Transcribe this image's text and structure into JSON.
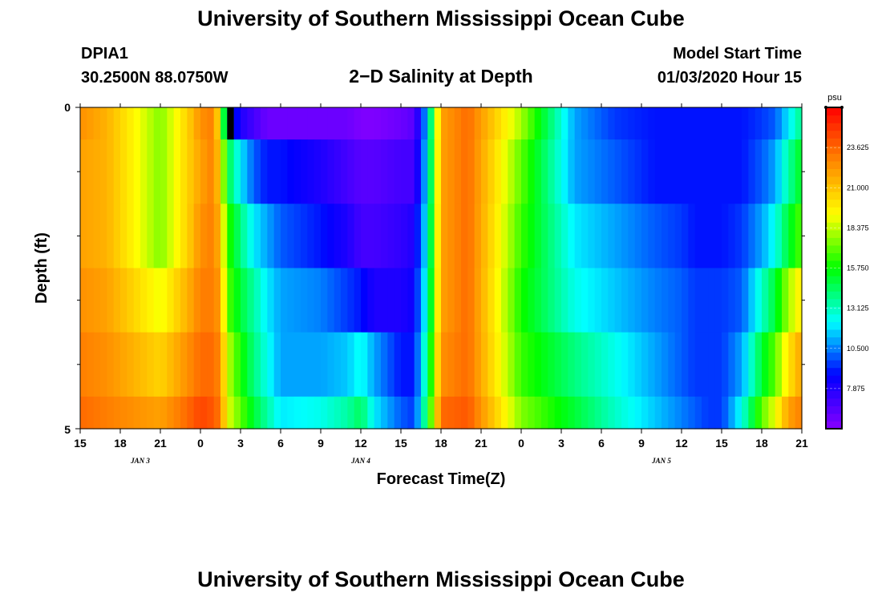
{
  "page": {
    "title": "University of Southern Mississippi Ocean Cube",
    "footer_title": "University of Southern Mississippi Ocean Cube",
    "station_id": "DPIA1",
    "station_coords": "30.2500N 88.0750W",
    "model_start_label": "Model Start Time",
    "model_start_value": "01/03/2020 Hour 15"
  },
  "chart_data": {
    "type": "heatmap",
    "title": "2−D Salinity at Depth",
    "xlabel": "Forecast Time(Z)",
    "ylabel": "Depth (ft)",
    "x_tick_labels": [
      "15",
      "18",
      "21",
      "0",
      "3",
      "6",
      "9",
      "12",
      "15",
      "18",
      "21",
      "0",
      "3",
      "6",
      "9",
      "12",
      "15",
      "18",
      "21"
    ],
    "day_labels": [
      {
        "label": "JAN 3",
        "hour_index": 4.5
      },
      {
        "label": "JAN 4",
        "hour_index": 21
      },
      {
        "label": "JAN 5",
        "hour_index": 43.5
      }
    ],
    "x_range_hours": [
      0,
      54
    ],
    "y_tick_labels": [
      "0",
      "5"
    ],
    "y_range_ft": [
      0,
      5
    ],
    "y_minor_ticks_ft": [
      1,
      2,
      3,
      4
    ],
    "depth_rows_ft": [
      0,
      0.5,
      1.5,
      2.5,
      3.5,
      4.5
    ],
    "depth_rows_span_ft": [
      [
        0,
        0.5
      ],
      [
        0.5,
        1.5
      ],
      [
        1.5,
        2.5
      ],
      [
        2.5,
        3.5
      ],
      [
        3.5,
        4.5
      ],
      [
        4.5,
        5
      ]
    ],
    "colorbar": {
      "unit": "psu",
      "min": 5.25,
      "max": 26.25,
      "tick_labels": [
        "7.875",
        "10.500",
        "13.125",
        "15.750",
        "18.375",
        "21.000",
        "23.625"
      ],
      "ticks": [
        7.875,
        10.5,
        13.125,
        15.75,
        18.375,
        21.0,
        23.625
      ],
      "colors": [
        "#8800ff",
        "#0000ff",
        "#00ffff",
        "#00ff00",
        "#ffff00",
        "#ff8800",
        "#ff0000"
      ]
    },
    "keyframes_hours": [
      0,
      2,
      4,
      6,
      8,
      9,
      10,
      10.5,
      11,
      12,
      13,
      14,
      15,
      18,
      20,
      21,
      22,
      24,
      25,
      26,
      27,
      29,
      33,
      37,
      40,
      43,
      45,
      46,
      47,
      48,
      49.5,
      51,
      52,
      53,
      54
    ],
    "salinity_rows": [
      [
        22.5,
        21.5,
        19.5,
        17.5,
        20.5,
        22.5,
        23,
        19,
        11,
        8,
        7,
        6,
        6,
        6,
        6,
        5.5,
        5.5,
        6,
        6.5,
        11.5,
        22,
        23.5,
        18,
        11,
        9.5,
        9,
        9,
        9,
        9,
        9,
        9,
        9.5,
        10,
        12,
        14
      ],
      [
        22,
        21.5,
        19.5,
        17.5,
        20.5,
        22,
        23,
        20,
        15,
        12,
        10,
        9,
        9,
        8,
        7,
        6.5,
        6.5,
        7,
        7,
        12,
        22,
        23.5,
        17,
        11,
        10,
        9,
        9,
        9,
        9,
        9,
        9,
        10,
        11,
        13.5,
        15.5
      ],
      [
        22,
        21.5,
        19.5,
        17.5,
        20.5,
        22.5,
        23,
        21,
        16.5,
        14,
        12,
        11,
        10,
        9,
        8,
        7,
        7,
        7.5,
        8,
        12.5,
        22,
        23.5,
        16.5,
        12,
        11,
        10,
        9.5,
        9,
        9,
        9,
        9.5,
        11,
        12.5,
        15,
        17
      ],
      [
        22.5,
        22,
        20.5,
        19,
        21.5,
        23,
        23,
        22,
        17,
        15,
        13.5,
        12,
        11,
        10.5,
        9.5,
        9,
        8,
        8,
        8.5,
        13,
        22,
        23.5,
        16,
        12.5,
        11.5,
        10.5,
        10,
        9.5,
        9.5,
        9.5,
        10,
        13,
        15,
        18,
        20
      ],
      [
        23,
        22.5,
        21.5,
        20.5,
        22.5,
        23.5,
        23.5,
        22.5,
        18.5,
        16,
        14,
        12.5,
        11,
        11,
        11.5,
        12.5,
        11,
        9,
        9,
        14,
        22.5,
        23.5,
        16.5,
        14,
        12.5,
        11,
        10,
        9.5,
        9.5,
        9.5,
        11,
        15,
        17,
        20,
        22
      ],
      [
        23.5,
        23,
        22.5,
        22,
        23.5,
        24.5,
        24,
        23,
        19,
        17,
        15,
        13.5,
        12,
        12.5,
        13.5,
        14.5,
        12,
        10,
        9.5,
        15,
        23.5,
        24,
        17.5,
        15,
        13,
        11.5,
        10.5,
        10,
        9.5,
        9.5,
        12.5,
        17,
        19,
        22,
        23
      ]
    ],
    "missing_cells": [
      {
        "hour": 11,
        "row": 0
      }
    ]
  }
}
